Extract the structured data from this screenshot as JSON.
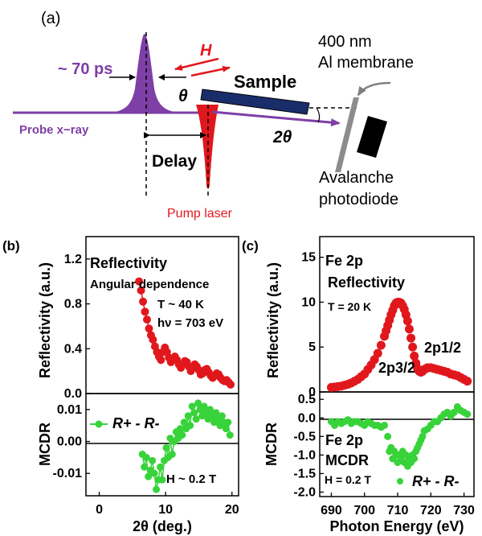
{
  "colors": {
    "purple": "#7e3fa6",
    "red": "#e0181d",
    "navy": "#1a2d6b",
    "green": "#38d33a",
    "gray": "#808080",
    "black": "#000000"
  },
  "schematic": {
    "panel_label": "(a)",
    "pulse_width": "~ 70 ps",
    "field_label": "H",
    "theta_label": "θ",
    "sample_label": "Sample",
    "two_theta_label": "2θ",
    "probe_label": "Probe x−ray",
    "delay_label": "Delay",
    "pump_label": "Pump laser",
    "membrane_line1": "400 nm",
    "membrane_line2": "Al membrane",
    "detector_line1": "Avalanche",
    "detector_line2": "photodiode"
  },
  "chart_data": [
    {
      "panel": "(b)",
      "type": "scatter",
      "subplots": [
        {
          "name": "reflectivity",
          "ylabel": "Reflectivity (a.u.)",
          "ylim": [
            0,
            1.4
          ],
          "yticks": [
            "0.0",
            "0.4",
            "0.8",
            "1.2"
          ],
          "annotations": [
            "Reflectivity",
            "Angular dependence",
            "T ~ 40 K",
            "hν = 703 eV"
          ],
          "series": [
            {
              "color": "#e0181d",
              "x": [
                6,
                6.3,
                6.6,
                6.9,
                7.2,
                7.5,
                7.8,
                8.1,
                8.4,
                8.7,
                9,
                9.3,
                9.6,
                9.9,
                10.2,
                10.5,
                10.8,
                11.1,
                11.4,
                11.7,
                12,
                12.3,
                12.6,
                12.9,
                13.2,
                13.5,
                13.8,
                14.1,
                14.4,
                14.7,
                15,
                15.3,
                15.6,
                15.9,
                16.2,
                16.5,
                16.8,
                17.1,
                17.4,
                17.7,
                18,
                18.3,
                18.6,
                18.9,
                19.2,
                19.5,
                19.8
              ],
              "y": [
                1.0,
                0.92,
                0.82,
                0.73,
                0.66,
                0.58,
                0.52,
                0.48,
                0.42,
                0.37,
                0.33,
                0.3,
                0.37,
                0.41,
                0.37,
                0.32,
                0.28,
                0.3,
                0.33,
                0.3,
                0.26,
                0.23,
                0.26,
                0.29,
                0.28,
                0.24,
                0.2,
                0.23,
                0.26,
                0.24,
                0.21,
                0.17,
                0.18,
                0.21,
                0.22,
                0.19,
                0.16,
                0.14,
                0.16,
                0.18,
                0.17,
                0.14,
                0.12,
                0.11,
                0.12,
                0.1,
                0.08
              ]
            }
          ]
        },
        {
          "name": "mcdr",
          "ylabel": "MCDR",
          "ylim": [
            -0.017,
            0.015
          ],
          "yticks": [
            "-0.01",
            "0.00",
            "0.01"
          ],
          "xlabel": "2θ (deg.)",
          "xlim": [
            -2,
            21
          ],
          "xticks": [
            "0",
            "10",
            "20"
          ],
          "annotations": [
            "H ~ 0.2 T"
          ],
          "legend": "R+ - R-",
          "series": [
            {
              "color": "#38d33a",
              "x": [
                6.5,
                6.8,
                7.1,
                7.4,
                7.7,
                8,
                8.3,
                8.6,
                8.9,
                9.2,
                9.5,
                9.8,
                10.1,
                10.4,
                10.7,
                11,
                11.3,
                11.6,
                11.9,
                12.2,
                12.5,
                12.8,
                13.1,
                13.4,
                13.7,
                14,
                14.3,
                14.6,
                14.9,
                15.2,
                15.5,
                15.8,
                16.1,
                16.4,
                16.7,
                17,
                17.3,
                17.6,
                17.9,
                18.2,
                18.5,
                18.8,
                19.1,
                19.4,
                19.7
              ],
              "y": [
                -0.004,
                -0.008,
                -0.005,
                -0.011,
                -0.009,
                -0.006,
                -0.01,
                -0.015,
                -0.012,
                -0.008,
                -0.012,
                -0.006,
                -0.002,
                -0.005,
                0.001,
                -0.004,
                0,
                0.003,
                0.001,
                0.004,
                0.002,
                0.006,
                0.004,
                0.008,
                0.005,
                0.011,
                0.009,
                0.007,
                0.012,
                0.01,
                0.008,
                0.011,
                0.009,
                0.007,
                0.01,
                0.008,
                0.006,
                0.009,
                0.007,
                0.005,
                0.008,
                0.006,
                0.004,
                0.006,
                0.002
              ]
            }
          ]
        }
      ]
    },
    {
      "panel": "(c)",
      "type": "scatter",
      "subplots": [
        {
          "name": "reflectivity",
          "ylabel": "Reflectivity (a.u.)",
          "ylim": [
            0,
            17.3
          ],
          "yticks": [
            "0",
            "5",
            "10",
            "15"
          ],
          "annotations": [
            "Fe 2p",
            "Reflectivity",
            "T = 20 K",
            "2p3/2",
            "2p1/2"
          ],
          "series": [
            {
              "color": "#e0181d",
              "x": [
                690,
                691,
                692,
                693,
                694,
                695,
                696,
                697,
                698,
                699,
                700,
                701,
                702,
                703,
                704,
                705,
                706,
                706.5,
                707,
                707.5,
                708,
                708.5,
                709,
                709.5,
                710,
                710.5,
                711,
                711.5,
                712,
                712.5,
                713,
                713.5,
                714,
                714.5,
                715,
                715.5,
                716,
                716.5,
                717,
                717.5,
                718,
                718.5,
                719,
                720,
                721,
                722,
                723,
                724,
                725,
                726,
                727,
                728,
                729,
                730,
                731
              ],
              "y": [
                0.5,
                0.55,
                0.6,
                0.65,
                0.75,
                0.85,
                1.0,
                1.2,
                1.4,
                1.7,
                2.0,
                2.5,
                3.0,
                3.6,
                4.3,
                5.2,
                6.2,
                6.8,
                7.4,
                8.0,
                8.6,
                9.1,
                9.6,
                9.9,
                10.0,
                10.0,
                9.9,
                9.6,
                9.2,
                8.6,
                7.9,
                7.0,
                6.0,
                5.0,
                4.0,
                3.2,
                2.6,
                2.3,
                2.2,
                2.3,
                2.5,
                2.6,
                2.7,
                2.7,
                2.6,
                2.5,
                2.4,
                2.3,
                2.2,
                2.0,
                1.9,
                1.8,
                1.6,
                1.4,
                1.2
              ]
            }
          ]
        },
        {
          "name": "mcdr",
          "ylabel": "MCDR",
          "ylim": [
            -2.12,
            0.7
          ],
          "yticks": [
            "0.5",
            "0.0",
            "-0.5",
            "-1.0",
            "-1.5",
            "-2.0"
          ],
          "xlabel": "Photon Energy (eV)",
          "xlim": [
            686.5,
            733
          ],
          "xticks": [
            "690",
            "700",
            "710",
            "720",
            "730"
          ],
          "annotations": [
            "Fe 2p",
            "MCDR",
            "H = 0.2 T"
          ],
          "legend": "R+ - R-",
          "series": [
            {
              "color": "#38d33a",
              "x": [
                690,
                691,
                692,
                693,
                694,
                695,
                696,
                697,
                698,
                699,
                700,
                701,
                702,
                703,
                704,
                705,
                706,
                707,
                707.5,
                708,
                708.5,
                709,
                709.5,
                710,
                710.5,
                711,
                711.5,
                712,
                712.5,
                713,
                713.5,
                714,
                714.5,
                715,
                715.5,
                716,
                716.5,
                717,
                717.5,
                718,
                719,
                720,
                721,
                722,
                723,
                724,
                725,
                726,
                727,
                728,
                729,
                730,
                731
              ],
              "y": [
                -0.1,
                -0.2,
                -0.1,
                -0.15,
                -0.1,
                -0.05,
                -0.15,
                -0.1,
                -0.1,
                -0.15,
                -0.2,
                -0.1,
                -0.15,
                -0.2,
                -0.2,
                -0.25,
                -0.2,
                -0.5,
                -0.9,
                -0.8,
                -1.1,
                -0.9,
                -1.0,
                -1.2,
                -1.0,
                -1.1,
                -0.9,
                -1.2,
                -1.0,
                -1.3,
                -1.1,
                -1.2,
                -1.0,
                -1.1,
                -0.9,
                -0.8,
                -0.7,
                -0.6,
                -0.5,
                -0.35,
                -0.3,
                -0.2,
                -0.1,
                -0.1,
                0.0,
                0.1,
                0.15,
                0.05,
                0.15,
                0.3,
                0.2,
                0.15,
                0.1
              ]
            }
          ]
        }
      ]
    }
  ]
}
